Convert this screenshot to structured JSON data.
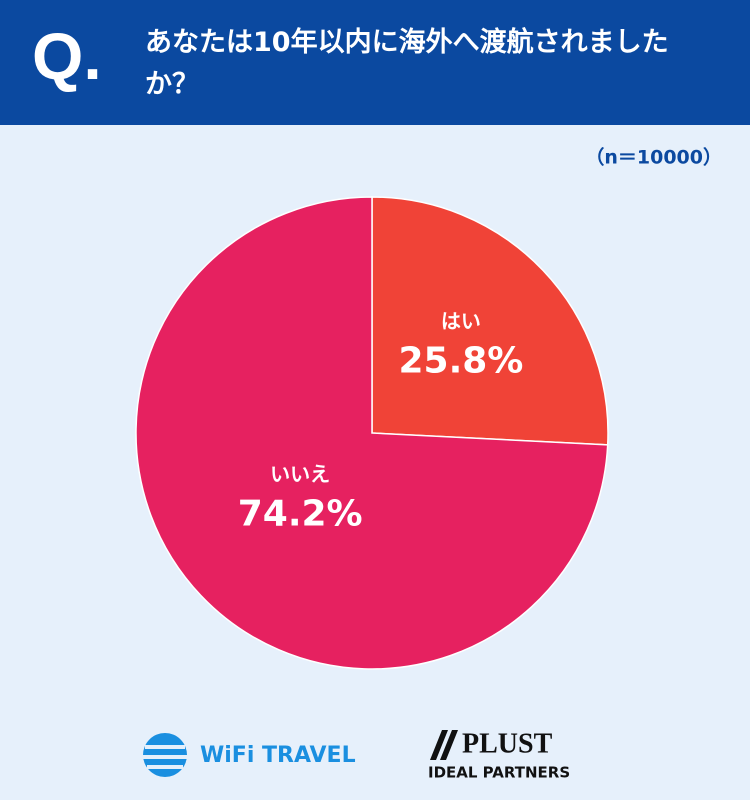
{
  "header": {
    "mark": "Q.",
    "question": "あなたは10年以内に海外へ渡航されましたか？"
  },
  "chart_data": {
    "type": "pie",
    "subtitle": "（n＝10000）",
    "categories": [
      "はい",
      "いいえ"
    ],
    "values": [
      25.8,
      74.2
    ],
    "value_labels": [
      "25.8%",
      "74.2%"
    ],
    "colors": [
      "#f04337",
      "#e62160"
    ]
  },
  "footer": {
    "logos": [
      "WiFi TRAVEL",
      "PLUST",
      "IDEAL PARTNERS"
    ]
  }
}
